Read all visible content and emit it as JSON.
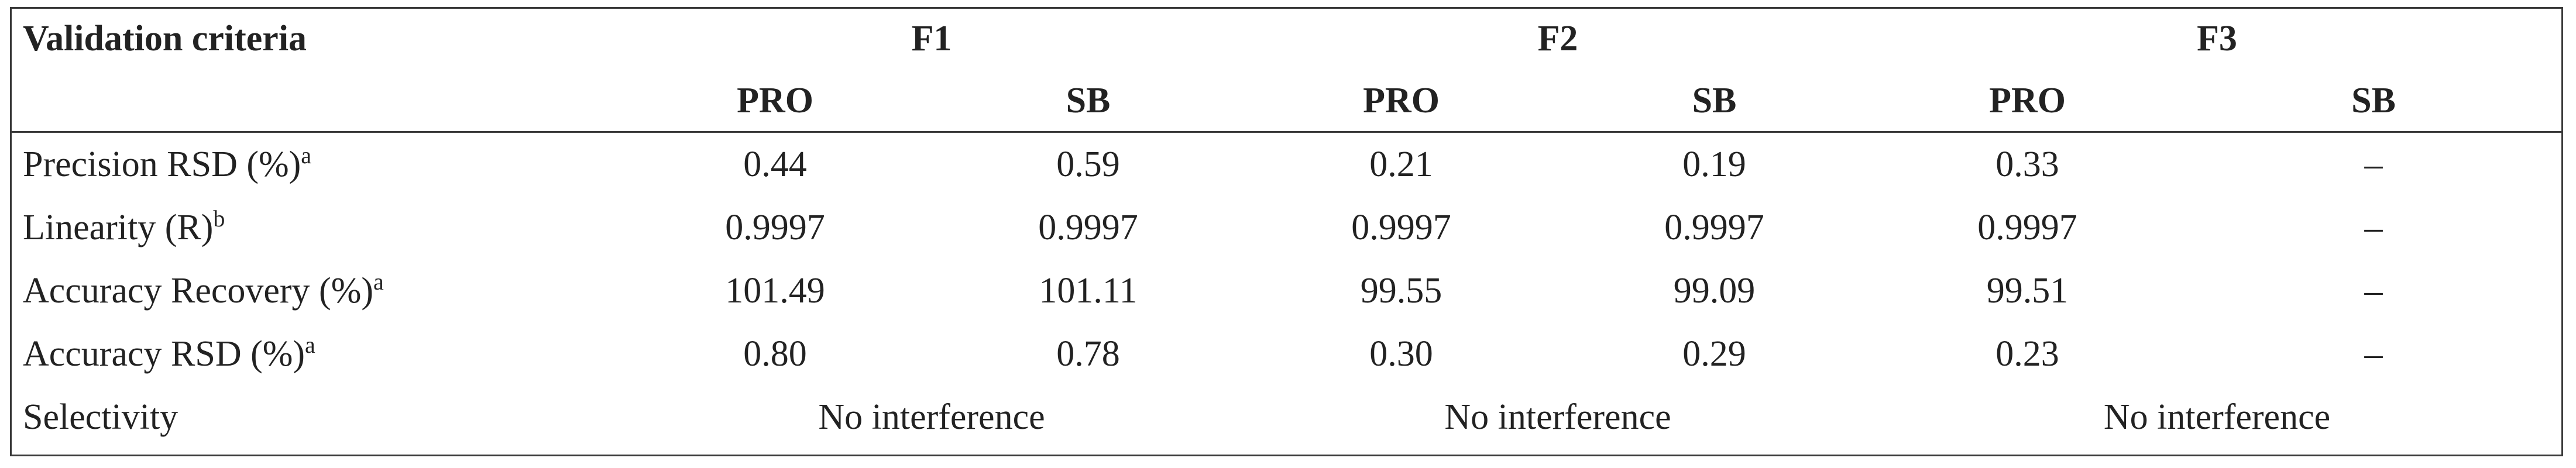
{
  "table": {
    "corner_header": "Validation criteria",
    "group_headers": [
      "F1",
      "F2",
      "F3"
    ],
    "sub_headers": [
      "PRO",
      "SB",
      "PRO",
      "SB",
      "PRO",
      "SB"
    ],
    "rows": [
      {
        "label": "Precision RSD (%)",
        "sup": "a",
        "values": [
          "0.44",
          "0.59",
          "0.21",
          "0.19",
          "0.33",
          "–"
        ]
      },
      {
        "label": "Linearity (R)",
        "sup": "b",
        "values": [
          "0.9997",
          "0.9997",
          "0.9997",
          "0.9997",
          "0.9997",
          "–"
        ]
      },
      {
        "label": "Accuracy Recovery (%)",
        "sup": "a",
        "values": [
          "101.49",
          "101.11",
          "99.55",
          "99.09",
          "99.51",
          "–"
        ]
      },
      {
        "label": "Accuracy RSD (%)",
        "sup": "a",
        "values": [
          "0.80",
          "0.78",
          "0.30",
          "0.29",
          "0.23",
          "–"
        ]
      }
    ],
    "selectivity": {
      "label": "Selectivity",
      "values": [
        "No interference",
        "No interference",
        "No interference"
      ]
    }
  }
}
